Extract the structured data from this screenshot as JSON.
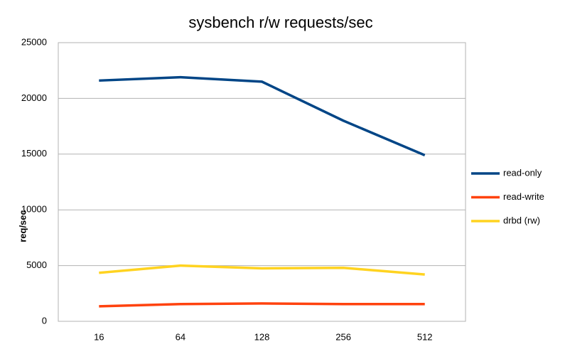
{
  "chart_data": {
    "type": "line",
    "title": "sysbench r/w requests/sec",
    "y_label": "req/sec",
    "categories": [
      "16",
      "64",
      "128",
      "256",
      "512"
    ],
    "series": [
      {
        "name": "read-only",
        "color": "#004586",
        "values": [
          21600,
          21900,
          21500,
          18000,
          14900
        ]
      },
      {
        "name": "read-write",
        "color": "#ff420e",
        "values": [
          1350,
          1550,
          1600,
          1550,
          1550
        ]
      },
      {
        "name": "drbd (rw)",
        "color": "#ffd320",
        "values": [
          4350,
          5000,
          4750,
          4800,
          4200
        ]
      }
    ],
    "ylim": [
      0,
      25000
    ],
    "yticks": [
      0,
      5000,
      10000,
      15000,
      20000,
      25000
    ],
    "grid": true,
    "legend": "right"
  }
}
